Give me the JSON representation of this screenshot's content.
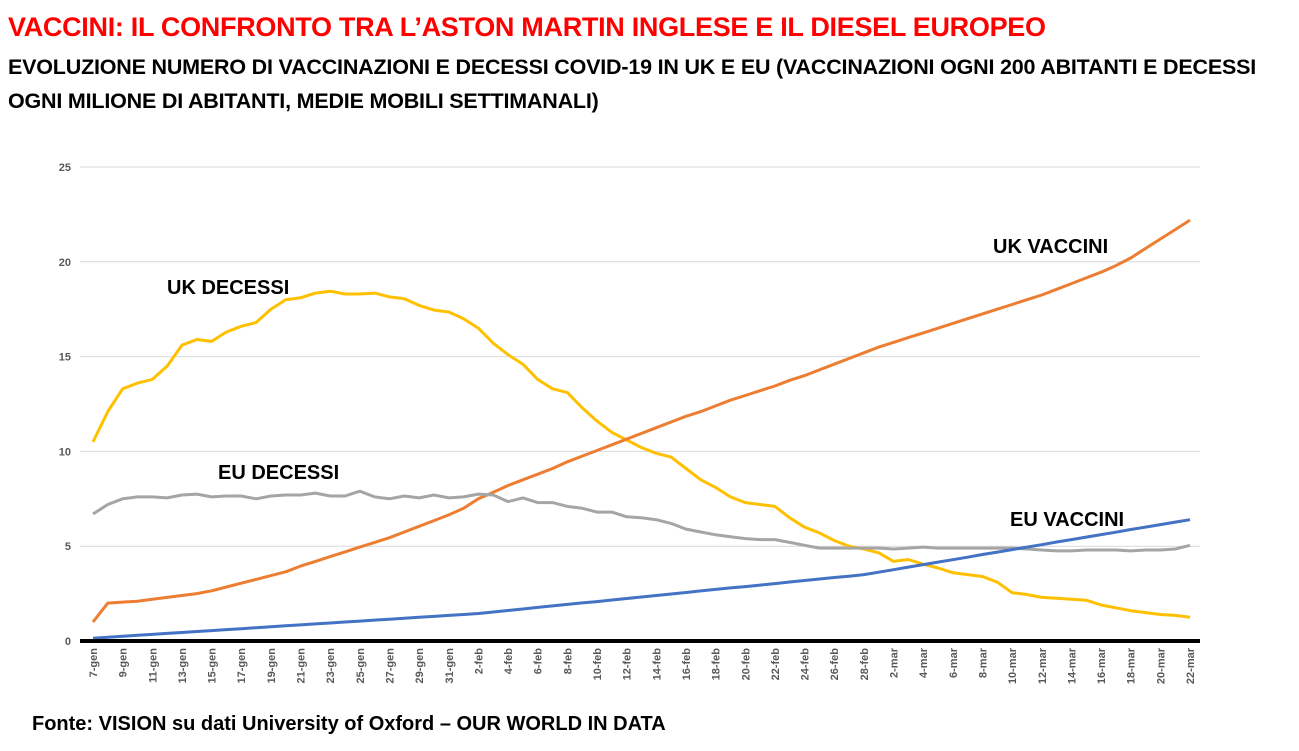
{
  "title": "VACCINI: IL CONFRONTO TRA L’ASTON MARTIN INGLESE E IL DIESEL EUROPEO",
  "subtitle": "EVOLUZIONE NUMERO DI VACCINAZIONI E DECESSI COVID-19 IN UK E EU (VACCINAZIONI OGNI 200 ABITANTI E DECESSI OGNI MILIONE DI ABITANTI, MEDIE MOBILI SETTIMANALI)",
  "source": "Fonte: VISION su dati University of Oxford – OUR WORLD IN DATA",
  "chart_data": {
    "type": "line",
    "ylim": [
      0,
      25
    ],
    "yticks": [
      "0",
      "5",
      "10",
      "15",
      "20",
      "25"
    ],
    "grid": true,
    "categories": [
      "7-gen",
      "8-gen",
      "9-gen",
      "10-gen",
      "11-gen",
      "12-gen",
      "13-gen",
      "14-gen",
      "15-gen",
      "16-gen",
      "17-gen",
      "18-gen",
      "19-gen",
      "20-gen",
      "21-gen",
      "22-gen",
      "23-gen",
      "24-gen",
      "25-gen",
      "26-gen",
      "27-gen",
      "28-gen",
      "29-gen",
      "30-gen",
      "31-gen",
      "1-feb",
      "2-feb",
      "3-feb",
      "4-feb",
      "5-feb",
      "6-feb",
      "7-feb",
      "8-feb",
      "9-feb",
      "10-feb",
      "11-feb",
      "12-feb",
      "13-feb",
      "14-feb",
      "15-feb",
      "16-feb",
      "17-feb",
      "18-feb",
      "19-feb",
      "20-feb",
      "21-feb",
      "22-feb",
      "23-feb",
      "24-feb",
      "25-feb",
      "26-feb",
      "27-feb",
      "28-feb",
      "1-mar",
      "2-mar",
      "3-mar",
      "4-mar",
      "5-mar",
      "6-mar",
      "7-mar",
      "8-mar",
      "9-mar",
      "10-mar",
      "11-mar",
      "12-mar",
      "13-mar",
      "14-mar",
      "15-mar",
      "16-mar",
      "17-mar",
      "18-mar",
      "19-mar",
      "20-mar",
      "21-mar",
      "22-mar"
    ],
    "series": [
      {
        "name": "UK DECESSI",
        "color": "#ffc000",
        "values": [
          10.5,
          12.1,
          13.3,
          13.6,
          13.8,
          14.5,
          15.6,
          15.9,
          15.8,
          16.3,
          16.6,
          16.8,
          17.5,
          18.0,
          18.1,
          18.35,
          18.45,
          18.3,
          18.3,
          18.35,
          18.15,
          18.05,
          17.7,
          17.45,
          17.35,
          17.0,
          16.5,
          15.7,
          15.1,
          14.6,
          13.8,
          13.3,
          13.1,
          12.3,
          11.6,
          11.0,
          10.6,
          10.2,
          9.9,
          9.7,
          9.1,
          8.5,
          8.1,
          7.6,
          7.3,
          7.2,
          7.1,
          6.5,
          6.0,
          5.7,
          5.3,
          5.0,
          4.85,
          4.65,
          4.2,
          4.3,
          4.05,
          3.85,
          3.6,
          3.5,
          3.4,
          3.1,
          2.55,
          2.45,
          2.3,
          2.25,
          2.2,
          2.15,
          1.9,
          1.75,
          1.6,
          1.5,
          1.4,
          1.35,
          1.25
        ]
      },
      {
        "name": "UK VACCINI",
        "color": "#ed7d31",
        "values": [
          1.0,
          2.0,
          2.05,
          2.1,
          2.2,
          2.3,
          2.4,
          2.5,
          2.65,
          2.85,
          3.05,
          3.25,
          3.45,
          3.65,
          3.95,
          4.2,
          4.45,
          4.7,
          4.95,
          5.2,
          5.45,
          5.75,
          6.05,
          6.35,
          6.65,
          7.0,
          7.5,
          7.85,
          8.2,
          8.5,
          8.8,
          9.1,
          9.45,
          9.75,
          10.05,
          10.35,
          10.65,
          10.95,
          11.25,
          11.55,
          11.85,
          12.1,
          12.4,
          12.7,
          12.95,
          13.2,
          13.45,
          13.75,
          14.0,
          14.3,
          14.6,
          14.9,
          15.2,
          15.5,
          15.75,
          16.0,
          16.25,
          16.5,
          16.75,
          17.0,
          17.25,
          17.5,
          17.75,
          18.0,
          18.25,
          18.55,
          18.85,
          19.15,
          19.45,
          19.8,
          20.2,
          20.7,
          21.2,
          21.7,
          22.2
        ]
      },
      {
        "name": "EU DECESSI",
        "color": "#a5a5a5",
        "values": [
          6.7,
          7.2,
          7.5,
          7.6,
          7.6,
          7.55,
          7.7,
          7.75,
          7.6,
          7.65,
          7.65,
          7.5,
          7.65,
          7.7,
          7.7,
          7.8,
          7.65,
          7.65,
          7.9,
          7.6,
          7.5,
          7.65,
          7.55,
          7.7,
          7.55,
          7.6,
          7.75,
          7.7,
          7.35,
          7.55,
          7.3,
          7.3,
          7.1,
          7.0,
          6.8,
          6.8,
          6.55,
          6.5,
          6.4,
          6.2,
          5.9,
          5.75,
          5.6,
          5.5,
          5.4,
          5.35,
          5.35,
          5.2,
          5.05,
          4.9,
          4.9,
          4.9,
          4.9,
          4.9,
          4.85,
          4.9,
          4.95,
          4.9,
          4.9,
          4.9,
          4.9,
          4.9,
          4.9,
          4.85,
          4.8,
          4.75,
          4.75,
          4.8,
          4.8,
          4.8,
          4.75,
          4.8,
          4.8,
          4.85,
          5.05
        ]
      },
      {
        "name": "EU VACCINI",
        "color": "#4472c4",
        "values": [
          0.15,
          0.2,
          0.25,
          0.3,
          0.35,
          0.4,
          0.45,
          0.5,
          0.55,
          0.6,
          0.65,
          0.7,
          0.75,
          0.8,
          0.85,
          0.9,
          0.95,
          1.0,
          1.05,
          1.1,
          1.15,
          1.2,
          1.25,
          1.3,
          1.35,
          1.4,
          1.45,
          1.53,
          1.61,
          1.69,
          1.77,
          1.85,
          1.93,
          2.01,
          2.08,
          2.16,
          2.24,
          2.32,
          2.4,
          2.48,
          2.56,
          2.64,
          2.72,
          2.8,
          2.87,
          2.95,
          3.03,
          3.11,
          3.19,
          3.27,
          3.35,
          3.42,
          3.5,
          3.63,
          3.76,
          3.9,
          4.03,
          4.16,
          4.29,
          4.42,
          4.56,
          4.69,
          4.82,
          4.95,
          5.08,
          5.22,
          5.35,
          5.48,
          5.61,
          5.74,
          5.88,
          6.01,
          6.14,
          6.27,
          6.4
        ]
      }
    ]
  }
}
